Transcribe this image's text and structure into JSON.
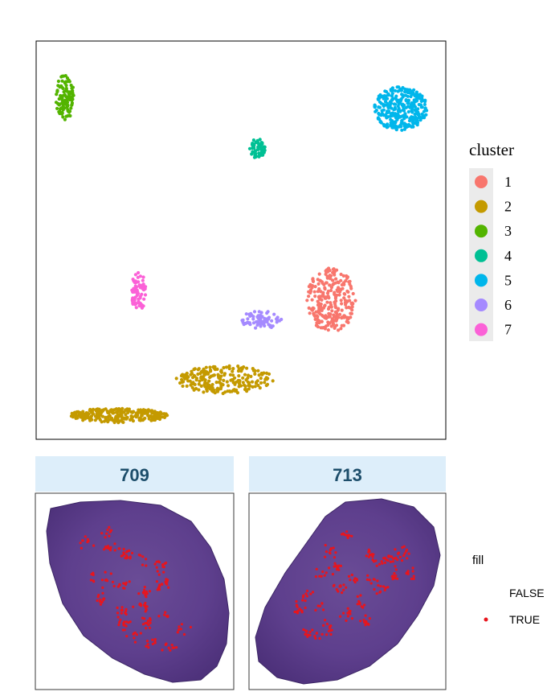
{
  "chart_data": [
    {
      "type": "scatter",
      "title": "",
      "xlabel": "",
      "ylabel": "",
      "xlim": [
        0,
        100
      ],
      "ylim": [
        0,
        100
      ],
      "grid": false,
      "legend": {
        "title": "cluster",
        "position": "right"
      },
      "series": [
        {
          "name": "1",
          "color": "#F8766D",
          "clusters": [
            {
              "cx": 72,
              "cy": 35,
              "rx": 6,
              "ry": 8,
              "n": 260
            }
          ]
        },
        {
          "name": "2",
          "color": "#C49A00",
          "clusters": [
            {
              "cx": 20,
              "cy": 6,
              "rx": 12,
              "ry": 1.8,
              "n": 260
            },
            {
              "cx": 46,
              "cy": 15,
              "rx": 12,
              "ry": 3.5,
              "n": 220
            }
          ]
        },
        {
          "name": "3",
          "color": "#53B400",
          "clusters": [
            {
              "cx": 7,
              "cy": 86,
              "rx": 2.2,
              "ry": 6,
              "n": 120
            }
          ]
        },
        {
          "name": "4",
          "color": "#00C094",
          "clusters": [
            {
              "cx": 54,
              "cy": 73,
              "rx": 2,
              "ry": 2.4,
              "n": 60
            }
          ]
        },
        {
          "name": "5",
          "color": "#00B6EB",
          "clusters": [
            {
              "cx": 89,
              "cy": 83,
              "rx": 6.5,
              "ry": 5.5,
              "n": 320
            }
          ]
        },
        {
          "name": "6",
          "color": "#A58AFF",
          "clusters": [
            {
              "cx": 55,
              "cy": 30,
              "rx": 5,
              "ry": 2.2,
              "n": 70
            }
          ]
        },
        {
          "name": "7",
          "color": "#FB61D7",
          "clusters": [
            {
              "cx": 25,
              "cy": 37,
              "rx": 1.8,
              "ry": 5,
              "n": 70
            }
          ]
        }
      ]
    },
    {
      "type": "scatter",
      "facets": [
        "709",
        "713"
      ],
      "legend": {
        "title": "fill",
        "position": "right",
        "entries": [
          {
            "label": "FALSE",
            "color": "#ffffff"
          },
          {
            "label": "TRUE",
            "color": "#e8151d"
          }
        ]
      },
      "spots": {
        "709": [
          [
            0.33,
            0.18
          ],
          [
            0.34,
            0.26
          ],
          [
            0.22,
            0.23
          ],
          [
            0.41,
            0.28
          ],
          [
            0.45,
            0.3
          ],
          [
            0.52,
            0.34
          ],
          [
            0.62,
            0.36
          ],
          [
            0.24,
            0.42
          ],
          [
            0.34,
            0.44
          ],
          [
            0.43,
            0.47
          ],
          [
            0.53,
            0.5
          ],
          [
            0.62,
            0.48
          ],
          [
            0.66,
            0.44
          ],
          [
            0.53,
            0.58
          ],
          [
            0.65,
            0.62
          ],
          [
            0.3,
            0.54
          ],
          [
            0.42,
            0.6
          ],
          [
            0.74,
            0.7
          ],
          [
            0.56,
            0.67
          ],
          [
            0.42,
            0.68
          ],
          [
            0.58,
            0.78
          ],
          [
            0.66,
            0.8
          ],
          [
            0.48,
            0.74
          ]
        ],
        "713": [
          [
            0.5,
            0.2
          ],
          [
            0.4,
            0.28
          ],
          [
            0.62,
            0.3
          ],
          [
            0.68,
            0.34
          ],
          [
            0.74,
            0.32
          ],
          [
            0.8,
            0.3
          ],
          [
            0.45,
            0.36
          ],
          [
            0.36,
            0.4
          ],
          [
            0.53,
            0.44
          ],
          [
            0.63,
            0.44
          ],
          [
            0.76,
            0.42
          ],
          [
            0.46,
            0.48
          ],
          [
            0.68,
            0.5
          ],
          [
            0.28,
            0.52
          ],
          [
            0.56,
            0.56
          ],
          [
            0.36,
            0.58
          ],
          [
            0.24,
            0.6
          ],
          [
            0.5,
            0.62
          ],
          [
            0.4,
            0.7
          ],
          [
            0.27,
            0.72
          ],
          [
            0.6,
            0.66
          ],
          [
            0.34,
            0.74
          ],
          [
            0.84,
            0.4
          ]
        ]
      }
    }
  ]
}
